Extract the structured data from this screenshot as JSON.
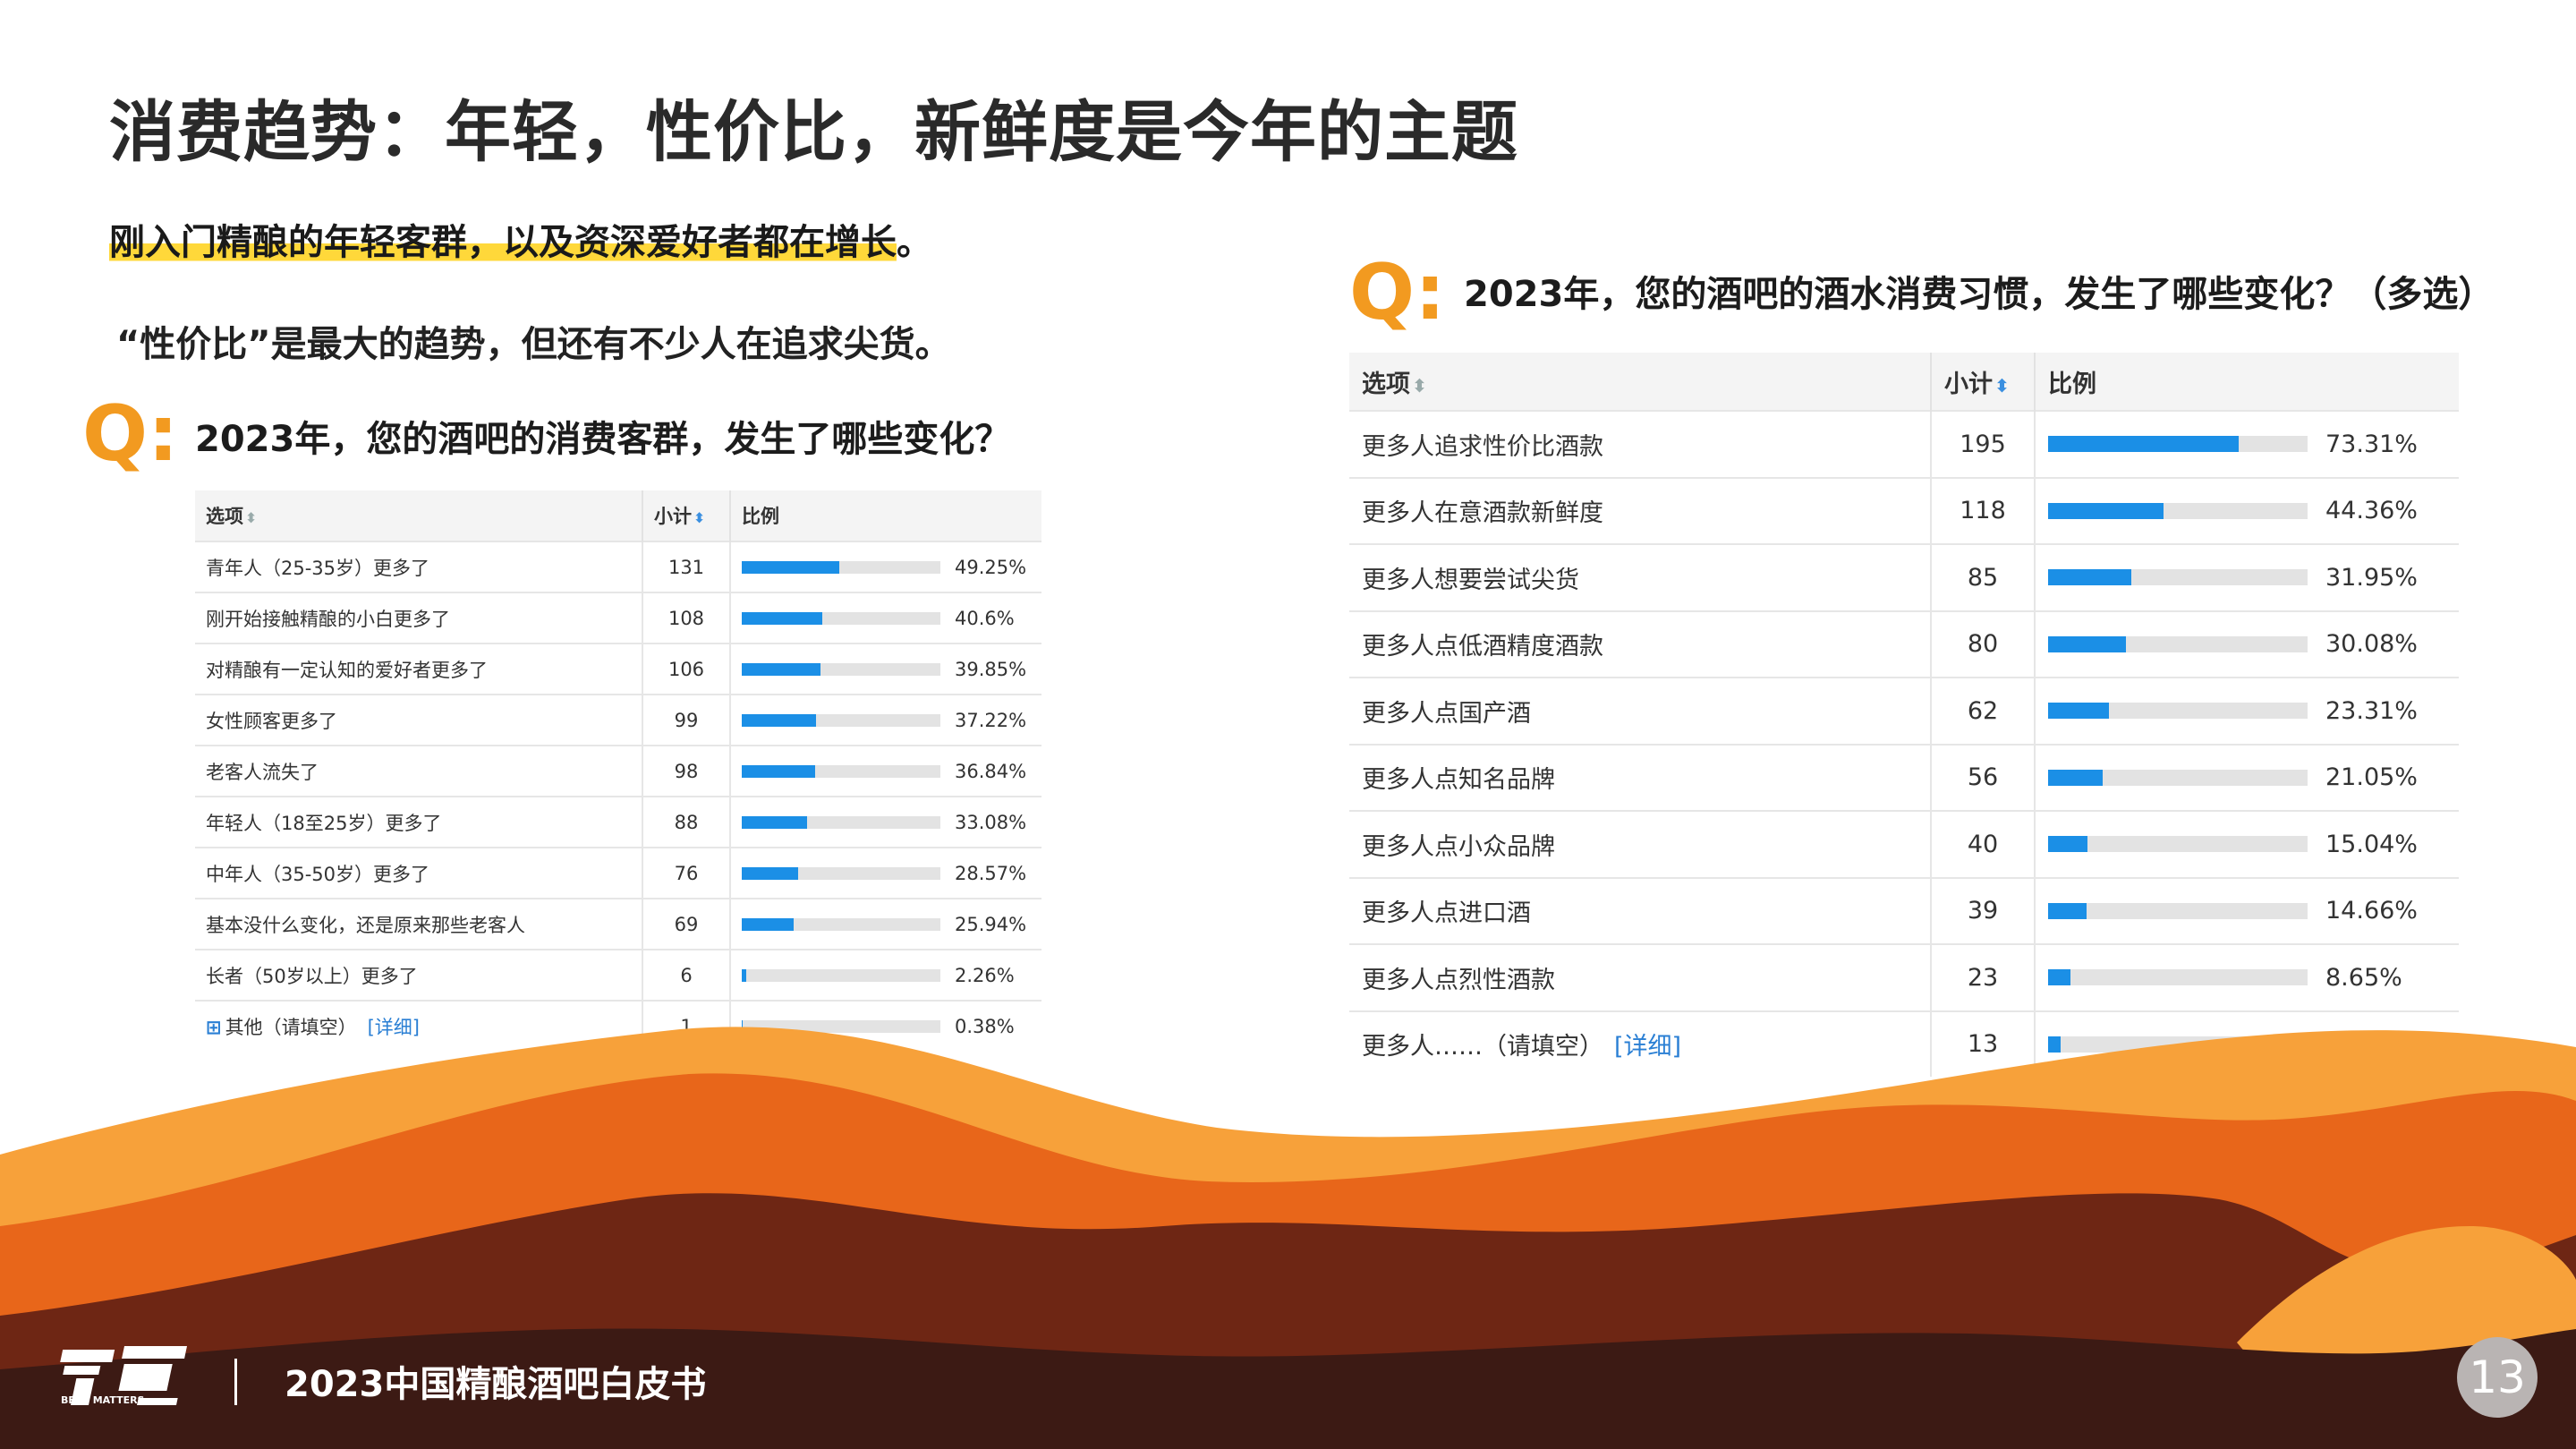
{
  "title": "消费趋势：年轻，性价比，新鲜度是今年的主题",
  "highlight_text": "刚入门精酿的年轻客群，以及资深爱好者都在增长",
  "highlight_end": "。",
  "trend_text": "“性价比”是最大的趋势，但还有不少人在追求尖货。",
  "q_mark": "Q:",
  "chart_data": [
    {
      "type": "table",
      "question": "2023年，您的酒吧的消费客群，发生了哪些变化？",
      "columns": [
        "选项",
        "小计",
        "比例"
      ],
      "categories": [
        "青年人（25-35岁）更多了",
        "刚开始接触精酿的小白更多了",
        "对精酿有一定认知的爱好者更多了",
        "女性顾客更多了",
        "老客人流失了",
        "年轻人（18至25岁）更多了",
        "中年人（35-50岁）更多了",
        "基本没什么变化，还是原来那些老客人",
        "长者（50岁以上）更多了",
        "其他（请填空）"
      ],
      "counts": [
        131,
        108,
        106,
        99,
        98,
        88,
        76,
        69,
        6,
        1
      ],
      "percent_labels": [
        "49.25%",
        "40.6%",
        "39.85%",
        "37.22%",
        "36.84%",
        "33.08%",
        "28.57%",
        "25.94%",
        "2.26%",
        "0.38%"
      ],
      "values": [
        49.25,
        40.6,
        39.85,
        37.22,
        36.84,
        33.08,
        28.57,
        25.94,
        2.26,
        0.38
      ],
      "detail_link": "[详细]",
      "bar_color": "#1b8fe6"
    },
    {
      "type": "table",
      "question": "2023年，您的酒吧的酒水消费习惯，发生了哪些变化？（多选）",
      "columns": [
        "选项",
        "小计",
        "比例"
      ],
      "categories": [
        "更多人追求性价比酒款",
        "更多人在意酒款新鲜度",
        "更多人想要尝试尖货",
        "更多人点低酒精度酒款",
        "更多人点国产酒",
        "更多人点知名品牌",
        "更多人点小众品牌",
        "更多人点进口酒",
        "更多人点烈性酒款",
        "更多人……（请填空）"
      ],
      "counts": [
        195,
        118,
        85,
        80,
        62,
        56,
        40,
        39,
        23,
        13
      ],
      "percent_labels": [
        "73.31%",
        "44.36%",
        "31.95%",
        "30.08%",
        "23.31%",
        "21.05%",
        "15.04%",
        "14.66%",
        "8.65%",
        "4.89%"
      ],
      "values": [
        73.31,
        44.36,
        31.95,
        30.08,
        23.31,
        21.05,
        15.04,
        14.66,
        8.65,
        4.89
      ],
      "detail_link": "[详细]",
      "bar_color": "#1b8fe6"
    }
  ],
  "footer": {
    "logo_text": "BEER MATTERS",
    "title": "2023中国精酿酒吧白皮书",
    "page_number": "13"
  },
  "colors": {
    "accent_orange": "#f29a20",
    "highlight_yellow": "#ffd83a",
    "wave_light": "#f7a13a",
    "wave_mid": "#e8661a",
    "wave_dark": "#6e2614",
    "wave_darkest": "#3c1a14"
  }
}
